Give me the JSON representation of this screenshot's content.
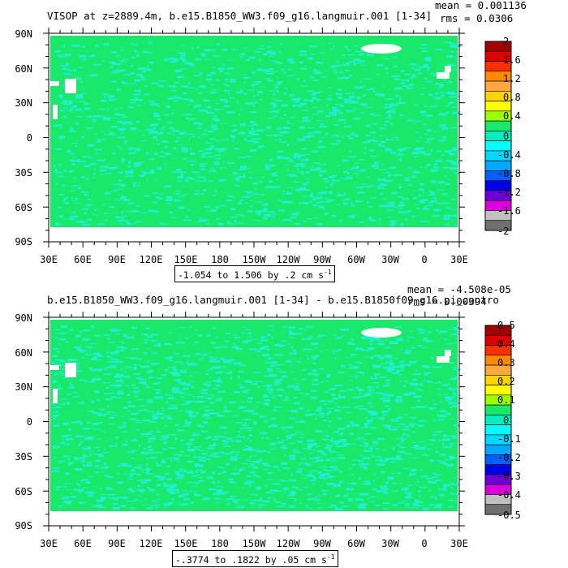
{
  "colors": {
    "ocean_fill": "#19e86a",
    "ocean_anomaly": "#1ff0d8",
    "land": "#ffffff",
    "sea_ice": "#ffffff"
  },
  "panels": [
    {
      "title": "VISOP at z=2889.4m, b.e15.B1850_WW3.f09_g16.langmuir.001 [1-34]",
      "mean_text": "mean = 0.001136",
      "rms_text": "rms = 0.0306",
      "range_text": "-1.054 to 1.506 by .2 cm s",
      "range_sup": "-1",
      "lat_labels": [
        "90N",
        "60N",
        "30N",
        "0",
        "30S",
        "60S",
        "90S"
      ],
      "lon_labels": [
        "30E",
        "60E",
        "90E",
        "120E",
        "150E",
        "180",
        "150W",
        "120W",
        "90W",
        "60W",
        "30W",
        "0",
        "30E"
      ],
      "colorbar": {
        "labels": [
          "2",
          "1.6",
          "1.2",
          "0.8",
          "0.4",
          "0",
          "-0.4",
          "-0.8",
          "-1.2",
          "-1.6",
          "-2"
        ],
        "colors": [
          "#a00000",
          "#dd0000",
          "#ff3000",
          "#ff8a00",
          "#ffa840",
          "#ffd400",
          "#ffff00",
          "#9cff00",
          "#19e86a",
          "#00eec0",
          "#00ffff",
          "#00d8ff",
          "#00a8ff",
          "#0060ff",
          "#0000e8",
          "#7000d8",
          "#dc00dc",
          "#c0c0c0",
          "#707070"
        ]
      }
    },
    {
      "title": "b.e15.B1850_WW3.f09_g16.langmuir.001 [1-34] - b.e15.B1850f09_g16.pi_contro",
      "mean_text": "mean = -4.508e-05",
      "rms_text": "rms = 0.00394",
      "range_text": "-.3774 to .1822 by .05 cm s",
      "range_sup": "-1",
      "lat_labels": [
        "90N",
        "60N",
        "30N",
        "0",
        "30S",
        "60S",
        "90S"
      ],
      "lon_labels": [
        "30E",
        "60E",
        "90E",
        "120E",
        "150E",
        "180",
        "150W",
        "120W",
        "90W",
        "60W",
        "30W",
        "0",
        "30E"
      ],
      "colorbar": {
        "labels": [
          "0.5",
          "0.4",
          "0.3",
          "0.2",
          "0.1",
          "0",
          "-0.1",
          "-0.2",
          "-0.3",
          "-0.4",
          "-0.5"
        ],
        "colors": [
          "#a00000",
          "#dd0000",
          "#ff3000",
          "#ff8a00",
          "#ffa840",
          "#ffd400",
          "#ffff00",
          "#9cff00",
          "#19e86a",
          "#00eec0",
          "#00ffff",
          "#00d8ff",
          "#00a8ff",
          "#0060ff",
          "#0000e8",
          "#7000d8",
          "#dc00dc",
          "#c0c0c0",
          "#707070"
        ]
      }
    }
  ],
  "chart_data": [
    {
      "type": "heatmap",
      "title": "VISOP at z=2889.4m, b.e15.B1850_WW3.f09_g16.langmuir.001 [1-34]",
      "units": "cm s-1",
      "xlim": [
        "30E",
        "30E"
      ],
      "ylim": [
        "90S",
        "90N"
      ],
      "mean": 0.001136,
      "rms": 0.0306,
      "data_min": -1.054,
      "data_max": 1.506,
      "contour_interval": 0.2,
      "colorbar_ticks": [
        2,
        1.6,
        1.2,
        0.8,
        0.4,
        0,
        -0.4,
        -0.8,
        -1.2,
        -1.6,
        -2
      ]
    },
    {
      "type": "heatmap",
      "title": "b.e15.B1850_WW3.f09_g16.langmuir.001 [1-34] - b.e15.B1850f09_g16.pi_contro",
      "units": "cm s-1",
      "xlim": [
        "30E",
        "30E"
      ],
      "ylim": [
        "90S",
        "90N"
      ],
      "mean": -4.508e-05,
      "rms": 0.00394,
      "data_min": -0.3774,
      "data_max": 0.1822,
      "contour_interval": 0.05,
      "colorbar_ticks": [
        0.5,
        0.4,
        0.3,
        0.2,
        0.1,
        0,
        -0.1,
        -0.2,
        -0.3,
        -0.4,
        -0.5
      ]
    }
  ]
}
